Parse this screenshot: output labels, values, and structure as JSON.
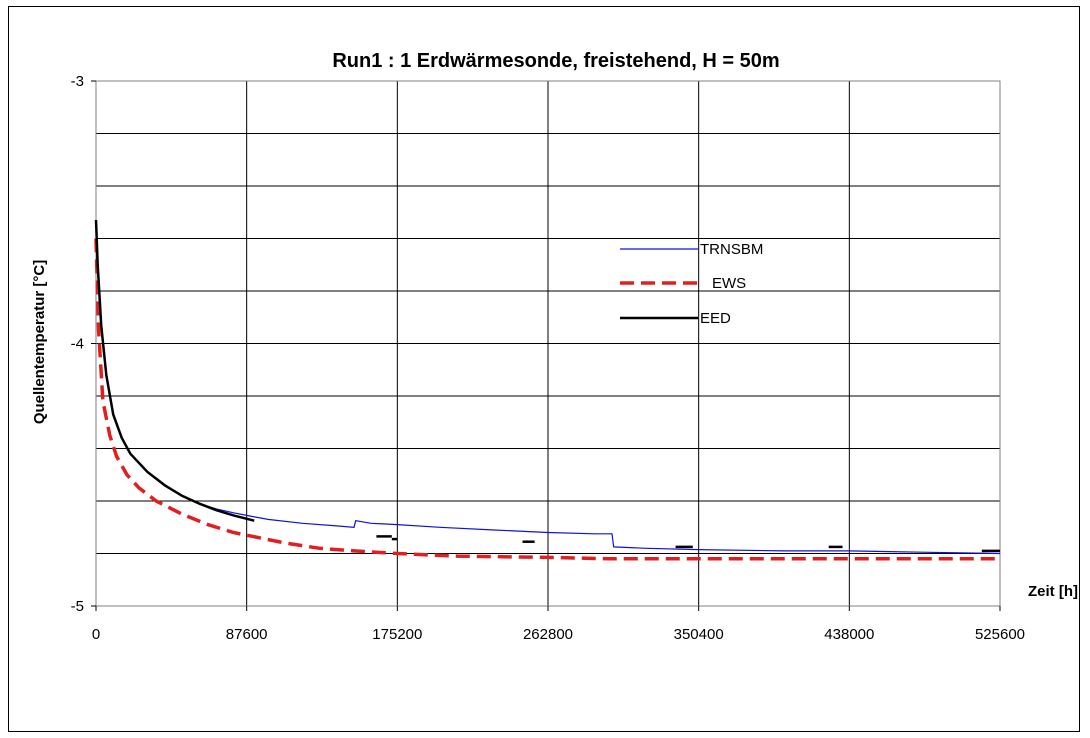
{
  "chart_data": {
    "type": "line",
    "title": "Run1 :  1 Erdwärmesonde, freistehend, H = 50m",
    "xlabel": "Zeit [h]",
    "ylabel": "Quellentemperatur  [°C]",
    "xlim": [
      0,
      525600
    ],
    "ylim": [
      -5,
      -3
    ],
    "x_ticks": [
      "0",
      "87600",
      "175200",
      "262800",
      "350400",
      "438000",
      "525600"
    ],
    "y_ticks": [
      "-3",
      "-4",
      "-5"
    ],
    "grid": true,
    "legend_position": "right",
    "series": [
      {
        "name": "TRNSBM",
        "color": "#1010e0",
        "style": "solid",
        "x": [
          0,
          1000,
          3000,
          6000,
          10000,
          15000,
          20000,
          30000,
          40000,
          50000,
          60000,
          70000,
          80000,
          87600,
          100000,
          120000,
          140000,
          150000,
          151000,
          160000,
          175200,
          200000,
          230000,
          262800,
          290000,
          300000,
          301000,
          320000,
          350400,
          400000,
          438000,
          480000,
          525600
        ],
        "y": [
          -3.55,
          -3.7,
          -3.93,
          -4.12,
          -4.27,
          -4.36,
          -4.42,
          -4.49,
          -4.54,
          -4.58,
          -4.61,
          -4.63,
          -4.645,
          -4.655,
          -4.67,
          -4.685,
          -4.695,
          -4.7,
          -4.675,
          -4.685,
          -4.69,
          -4.7,
          -4.71,
          -4.72,
          -4.725,
          -4.725,
          -4.775,
          -4.78,
          -4.785,
          -4.79,
          -4.79,
          -4.795,
          -4.8
        ]
      },
      {
        "name": "EWS",
        "color": "#e02020",
        "style": "dashed",
        "x": [
          0,
          1500,
          4000,
          8000,
          12000,
          18000,
          25000,
          35000,
          50000,
          65000,
          80000,
          95000,
          110000,
          130000,
          150000,
          175200,
          210000,
          262800,
          300000,
          350400,
          438000,
          525600
        ],
        "y": [
          -3.6,
          -3.95,
          -4.22,
          -4.35,
          -4.43,
          -4.5,
          -4.55,
          -4.6,
          -4.65,
          -4.69,
          -4.72,
          -4.74,
          -4.76,
          -4.78,
          -4.79,
          -4.8,
          -4.81,
          -4.815,
          -4.82,
          -4.82,
          -4.82,
          -4.82
        ]
      },
      {
        "name": "EED",
        "color": "#000000",
        "style": "solid",
        "x": [
          0,
          1000,
          3000,
          6000,
          10000,
          15000,
          20000,
          30000,
          40000,
          50000,
          60000,
          70000,
          80000,
          92000
        ],
        "y": [
          -3.53,
          -3.7,
          -3.93,
          -4.12,
          -4.27,
          -4.36,
          -4.42,
          -4.49,
          -4.54,
          -4.58,
          -4.61,
          -4.635,
          -4.655,
          -4.675
        ]
      }
    ],
    "segments": [
      {
        "series": "EED",
        "x": [
          163000,
          172000
        ],
        "y": [
          -4.735,
          -4.735
        ]
      },
      {
        "series": "EED",
        "x": [
          172000,
          175000
        ],
        "y": [
          -4.745,
          -4.745
        ]
      },
      {
        "series": "EED",
        "x": [
          248000,
          255000
        ],
        "y": [
          -4.755,
          -4.755
        ]
      },
      {
        "series": "EED",
        "x": [
          337000,
          347000
        ],
        "y": [
          -4.775,
          -4.775
        ]
      },
      {
        "series": "EED",
        "x": [
          426000,
          434000
        ],
        "y": [
          -4.775,
          -4.775
        ]
      },
      {
        "series": "EED",
        "x": [
          515000,
          525600
        ],
        "y": [
          -4.79,
          -4.79
        ]
      }
    ]
  }
}
